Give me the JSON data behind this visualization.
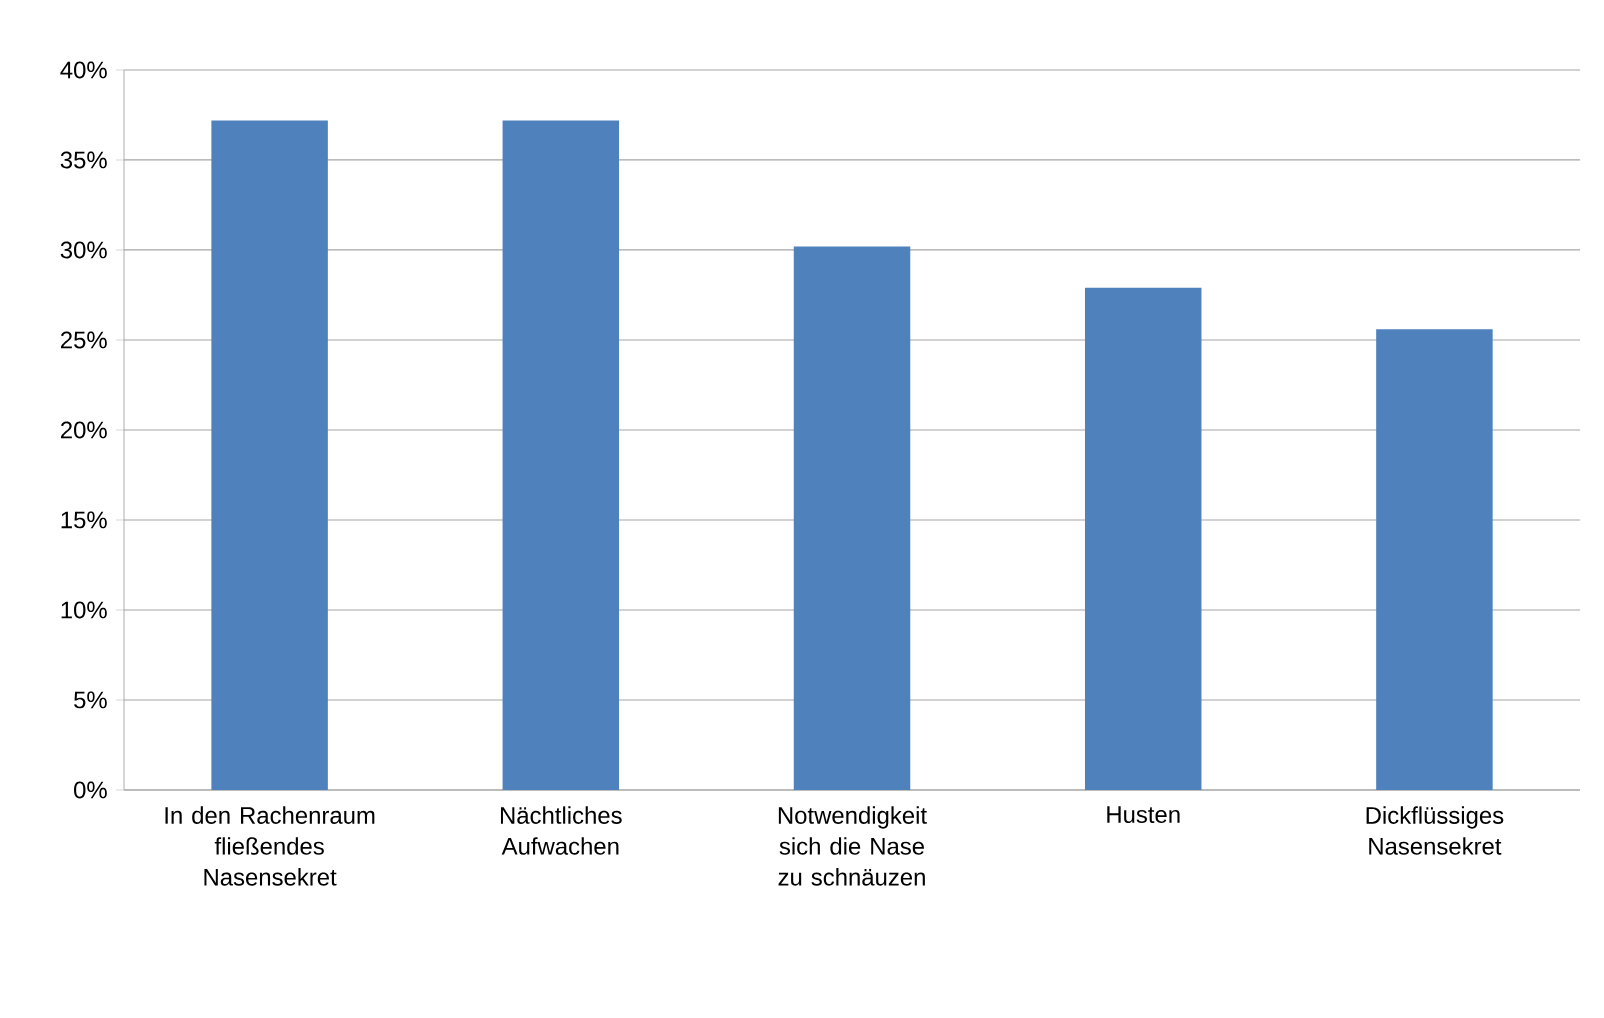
{
  "chart_data": {
    "type": "bar",
    "categories": [
      "In den Rachenraum fließendes Nasensekret",
      "Nächtliches Aufwachen",
      "Notwendigkeit sich die Nase zu schnäuzen",
      "Husten",
      "Dickflüssiges Nasensekret"
    ],
    "values": [
      37.2,
      37.2,
      30.2,
      27.9,
      25.6
    ],
    "color": "#4f81bd",
    "ylim": [
      0,
      40
    ],
    "yticks": [
      {
        "value": 0,
        "label": "0%"
      },
      {
        "value": 5,
        "label": "5%"
      },
      {
        "value": 10,
        "label": "10%"
      },
      {
        "value": 15,
        "label": "15%"
      },
      {
        "value": 20,
        "label": "20%"
      },
      {
        "value": 25,
        "label": "25%"
      },
      {
        "value": 30,
        "label": "30%"
      },
      {
        "value": 35,
        "label": "35%"
      },
      {
        "value": 40,
        "label": "40%"
      }
    ],
    "grid": "y"
  }
}
